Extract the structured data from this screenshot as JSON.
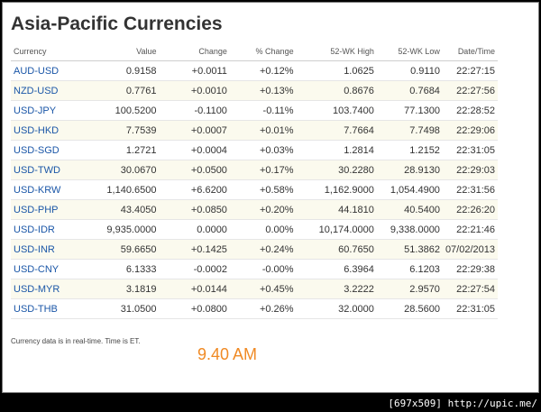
{
  "title": "Asia-Pacific Currencies",
  "columns": [
    "Currency",
    "Value",
    "Change",
    "% Change",
    "52-WK High",
    "52-WK Low",
    "Date/Time"
  ],
  "rows": [
    {
      "symbol": "AUD-USD",
      "value": "0.9158",
      "change": "+0.0011",
      "pct": "+0.12%",
      "high": "1.0625",
      "low": "0.9110",
      "time": "22:27:15",
      "dir": "pos"
    },
    {
      "symbol": "NZD-USD",
      "value": "0.7761",
      "change": "+0.0010",
      "pct": "+0.13%",
      "high": "0.8676",
      "low": "0.7684",
      "time": "22:27:56",
      "dir": "pos"
    },
    {
      "symbol": "USD-JPY",
      "value": "100.5200",
      "change": "-0.1100",
      "pct": "-0.11%",
      "high": "103.7400",
      "low": "77.1300",
      "time": "22:28:52",
      "dir": "neg"
    },
    {
      "symbol": "USD-HKD",
      "value": "7.7539",
      "change": "+0.0007",
      "pct": "+0.01%",
      "high": "7.7664",
      "low": "7.7498",
      "time": "22:29:06",
      "dir": "pos"
    },
    {
      "symbol": "USD-SGD",
      "value": "1.2721",
      "change": "+0.0004",
      "pct": "+0.03%",
      "high": "1.2814",
      "low": "1.2152",
      "time": "22:31:05",
      "dir": "pos"
    },
    {
      "symbol": "USD-TWD",
      "value": "30.0670",
      "change": "+0.0500",
      "pct": "+0.17%",
      "high": "30.2280",
      "low": "28.9130",
      "time": "22:29:03",
      "dir": "pos"
    },
    {
      "symbol": "USD-KRW",
      "value": "1,140.6500",
      "change": "+6.6200",
      "pct": "+0.58%",
      "high": "1,162.9000",
      "low": "1,054.4900",
      "time": "22:31:56",
      "dir": "pos"
    },
    {
      "symbol": "USD-PHP",
      "value": "43.4050",
      "change": "+0.0850",
      "pct": "+0.20%",
      "high": "44.1810",
      "low": "40.5400",
      "time": "22:26:20",
      "dir": "pos"
    },
    {
      "symbol": "USD-IDR",
      "value": "9,935.0000",
      "change": "0.0000",
      "pct": "0.00%",
      "high": "10,174.0000",
      "low": "9,338.0000",
      "time": "22:21:46",
      "dir": "zero"
    },
    {
      "symbol": "USD-INR",
      "value": "59.6650",
      "change": "+0.1425",
      "pct": "+0.24%",
      "high": "60.7650",
      "low": "51.3862",
      "time": "07/02/2013",
      "dir": "pos"
    },
    {
      "symbol": "USD-CNY",
      "value": "6.1333",
      "change": "-0.0002",
      "pct": "-0.00%",
      "high": "6.3964",
      "low": "6.1203",
      "time": "22:29:38",
      "dir": "neg"
    },
    {
      "symbol": "USD-MYR",
      "value": "3.1819",
      "change": "+0.0144",
      "pct": "+0.45%",
      "high": "3.2222",
      "low": "2.9570",
      "time": "22:27:54",
      "dir": "pos"
    },
    {
      "symbol": "USD-THB",
      "value": "31.0500",
      "change": "+0.0800",
      "pct": "+0.26%",
      "high": "32.0000",
      "low": "28.5600",
      "time": "22:31:05",
      "dir": "pos"
    }
  ],
  "footnote": "Currency data is in real-time. Time is ET.",
  "handwritten_time": "9.40 AM",
  "watermark": "[697x509] http://upic.me/",
  "colors": {
    "positive": "#2a8a2a",
    "negative": "#cc0000",
    "link": "#1a56a7",
    "accent": "#f08a24"
  }
}
